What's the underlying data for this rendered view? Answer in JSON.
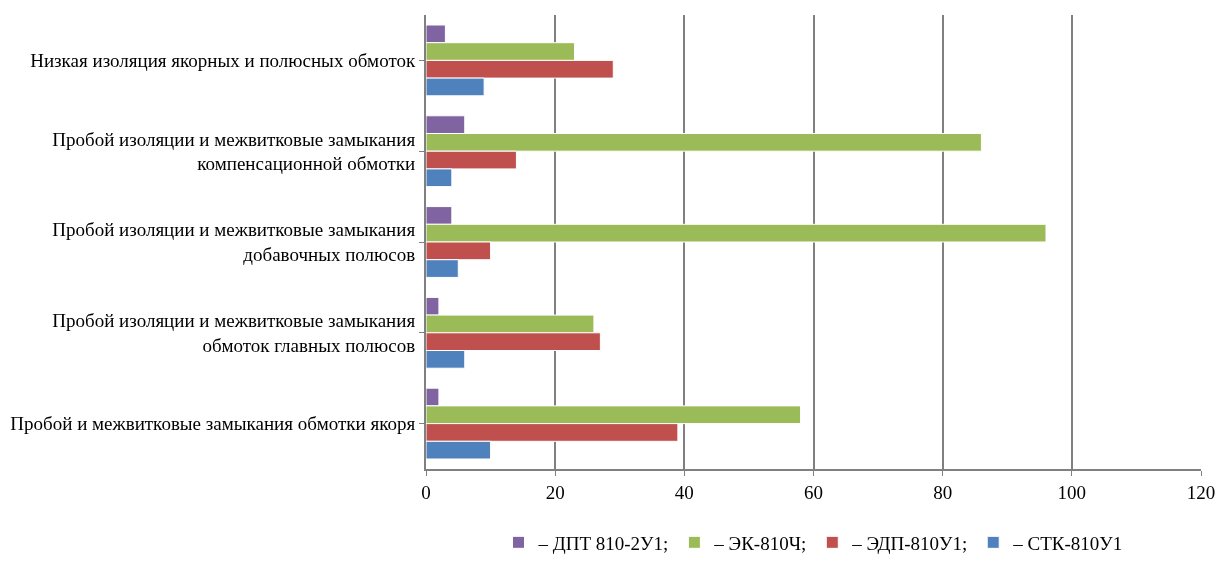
{
  "chart_data": {
    "type": "bar",
    "orientation": "horizontal",
    "categories": [
      "Низкая изоляция якорных и полюсных обмоток",
      "Пробой изоляции и межвитковые замыкания\nкомпенсационной обмотки",
      "Пробой изоляции и межвитковые замыкания\nдобавочных полюсов",
      "Пробой изоляции и межвитковые замыкания\nобмоток главных полюсов",
      "Пробой и межвитковые замыкания обмотки якоря"
    ],
    "series": [
      {
        "name": "– ДПТ 810-2У1;",
        "color": "#8064a2",
        "values": [
          3,
          6,
          4,
          2,
          2
        ]
      },
      {
        "name": "– ЭК-810Ч;",
        "color": "#9bbb59",
        "values": [
          23,
          86,
          96,
          26,
          58
        ]
      },
      {
        "name": "– ЭДП-810У1;",
        "color": "#c0504d",
        "values": [
          29,
          14,
          10,
          27,
          39
        ]
      },
      {
        "name": "– СТК-810У1",
        "color": "#4f81bd",
        "values": [
          9,
          4,
          5,
          6,
          10
        ]
      }
    ],
    "xlim": [
      0,
      120
    ],
    "xticks": [
      0,
      20,
      40,
      60,
      80,
      100,
      120
    ],
    "grid": "x",
    "legend": "bottom"
  }
}
